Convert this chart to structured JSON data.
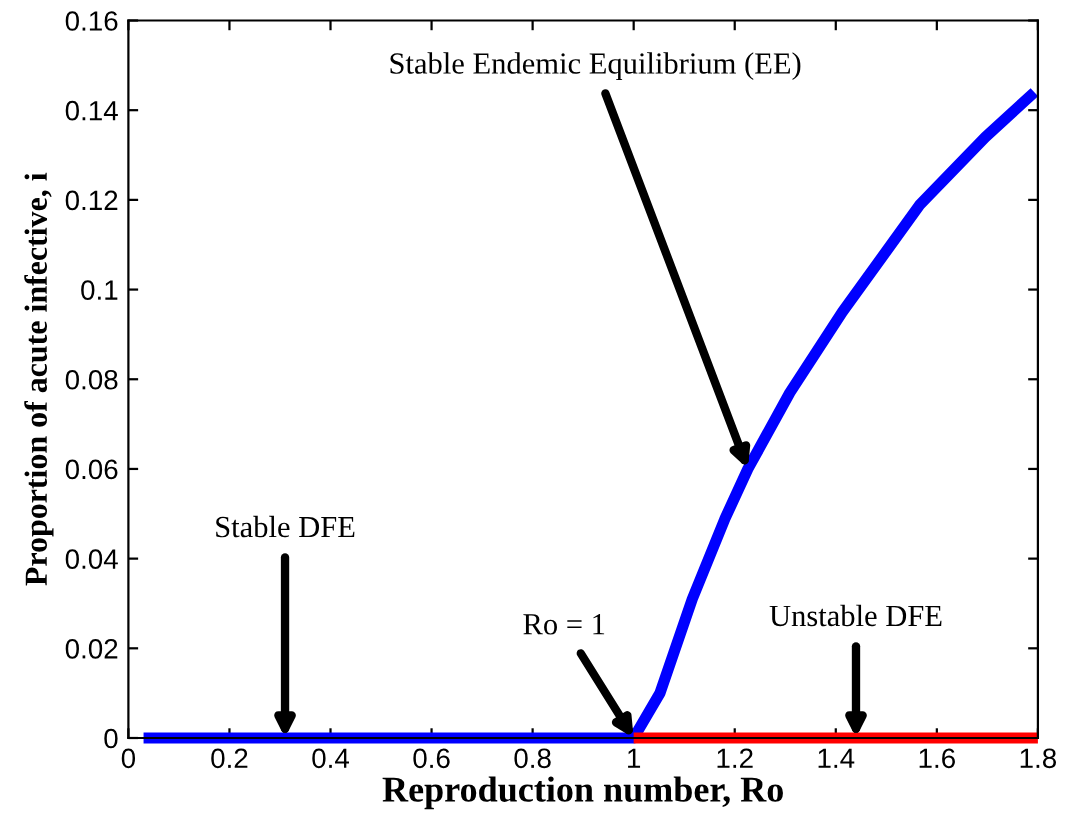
{
  "chart_data": {
    "type": "line",
    "xlabel": "Reproduction number, Ro",
    "ylabel": "Proportion of acute infective, i",
    "series": [
      {
        "color": "#0000ff",
        "x": [
          0.03,
          1.0,
          1.052,
          1.116,
          1.181,
          1.226,
          1.309,
          1.413,
          1.567,
          1.696,
          1.793
        ],
        "values": [
          0,
          0,
          0.01,
          0.031,
          0.049,
          0.06,
          0.077,
          0.095,
          0.119,
          0.134,
          0.144
        ]
      },
      {
        "color": "#ff0000",
        "x": [
          1.0,
          1.8
        ],
        "values": [
          0,
          0
        ]
      }
    ],
    "annotations": [
      {
        "text": "Stable DFE",
        "x": 0.31,
        "y": 0
      },
      {
        "text": "Ro = 1",
        "x": 1.0,
        "y": 0
      },
      {
        "text": "Stable Endemic Equilibrium (EE)",
        "x": 1.226,
        "y": 0.06
      },
      {
        "text": "Unstable DFE",
        "x": 1.44,
        "y": 0
      }
    ],
    "xlim": [
      0,
      1.8
    ],
    "xticks": [
      0,
      0.2,
      0.4,
      0.6,
      0.8,
      1,
      1.2,
      1.4,
      1.6,
      1.8
    ],
    "ylim": [
      0,
      0.16
    ],
    "yticks": [
      0,
      0.02,
      0.04,
      0.06,
      0.08,
      0.1,
      0.12,
      0.14,
      0.16
    ],
    "grid": false,
    "marker": "none",
    "line_style": "solid",
    "legend": false
  }
}
